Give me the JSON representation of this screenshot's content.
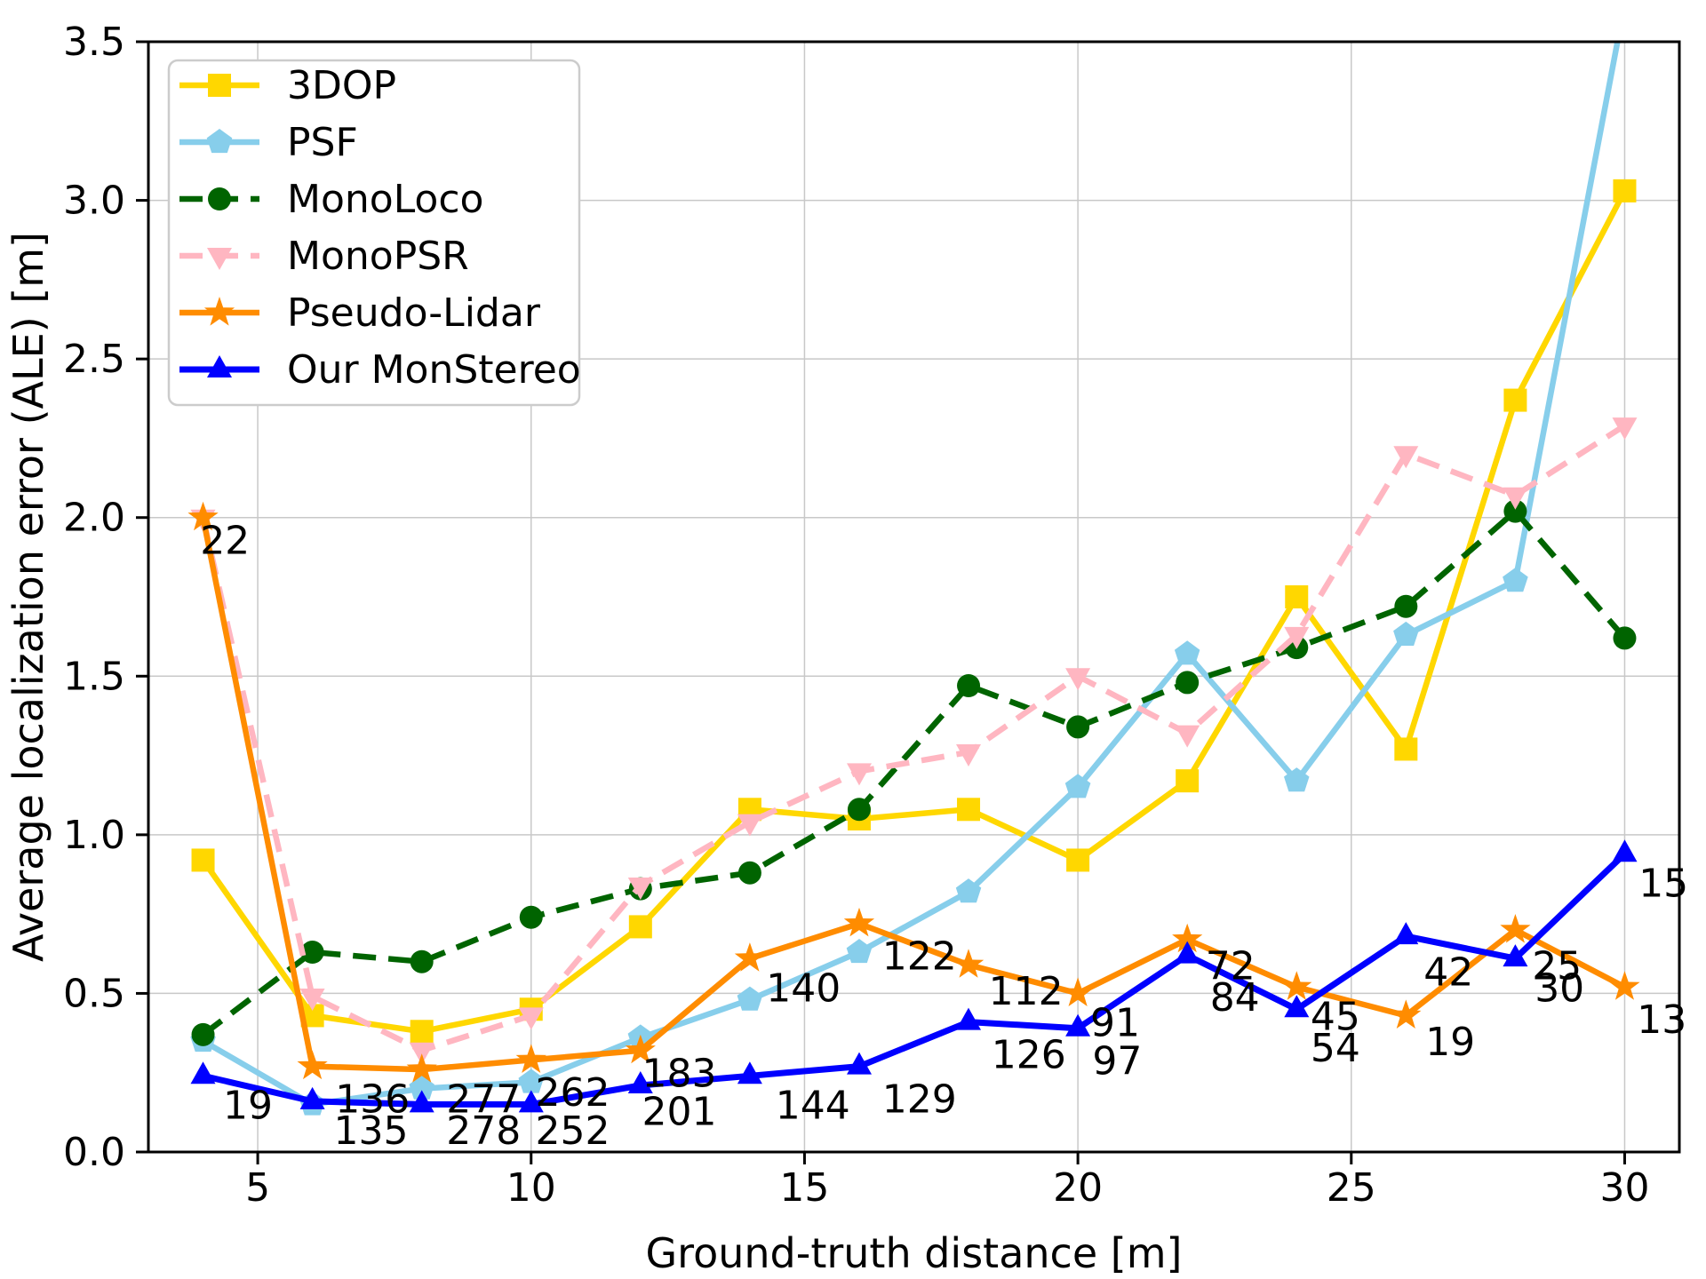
{
  "figure": {
    "background": "#ffffff",
    "grid_color": "#c8c8c8",
    "spine_color": "#000000",
    "legend_border_color": "#cccccc"
  },
  "chart_data": {
    "type": "line",
    "title": "",
    "xlabel": "Ground-truth distance [m]",
    "ylabel": "Average localization error (ALE) [m]",
    "xlim": [
      3,
      31
    ],
    "ylim": [
      0,
      3.5
    ],
    "grid": true,
    "legend_position": "upper-left",
    "xticks": [
      "5",
      "10",
      "15",
      "20",
      "25",
      "30"
    ],
    "yticks": [
      "0.0",
      "0.5",
      "1.0",
      "1.5",
      "2.0",
      "2.5",
      "3.0",
      "3.5"
    ],
    "x": [
      4,
      6,
      8,
      10,
      12,
      14,
      16,
      18,
      20,
      22,
      24,
      26,
      28,
      30
    ],
    "series": [
      {
        "name": "3DOP",
        "color": "#FFD700",
        "marker": "square",
        "dash": "solid",
        "values": [
          0.92,
          0.43,
          0.38,
          0.45,
          0.71,
          1.08,
          1.05,
          1.08,
          0.92,
          1.17,
          1.75,
          1.27,
          2.37,
          3.03
        ]
      },
      {
        "name": "PSF",
        "color": "#87CEEB",
        "marker": "pentagon",
        "dash": "solid",
        "values": [
          0.35,
          0.15,
          0.2,
          0.22,
          0.36,
          0.48,
          0.63,
          0.82,
          1.15,
          1.57,
          1.17,
          1.63,
          1.8,
          3.62
        ]
      },
      {
        "name": "MonoLoco",
        "color": "#006400",
        "marker": "circle",
        "dash": "dashed",
        "values": [
          0.37,
          0.63,
          0.6,
          0.74,
          0.83,
          0.88,
          1.08,
          1.47,
          1.34,
          1.48,
          1.59,
          1.72,
          2.02,
          1.62
        ]
      },
      {
        "name": "MonoPSR",
        "color": "#FFB6C1",
        "marker": "triangle-down",
        "dash": "dashed",
        "values": [
          2.0,
          0.49,
          0.32,
          0.43,
          0.84,
          1.04,
          1.2,
          1.26,
          1.5,
          1.32,
          1.63,
          2.2,
          2.07,
          2.29
        ]
      },
      {
        "name": "Pseudo-Lidar",
        "color": "#FF8C00",
        "marker": "star",
        "dash": "solid",
        "values": [
          2.0,
          0.27,
          0.26,
          0.29,
          0.32,
          0.61,
          0.72,
          0.59,
          0.5,
          0.67,
          0.52,
          0.43,
          0.7,
          0.52
        ]
      },
      {
        "name": "Our MonStereo",
        "color": "#0000FF",
        "marker": "triangle-up",
        "dash": "solid",
        "values": [
          0.24,
          0.16,
          0.15,
          0.15,
          0.21,
          0.24,
          0.27,
          0.41,
          0.39,
          0.62,
          0.45,
          0.68,
          0.61,
          0.94
        ]
      }
    ],
    "annotations": [
      {
        "text": "22",
        "x": 4.4,
        "y": 1.93,
        "series": "Pseudo-Lidar"
      },
      {
        "text": "19",
        "x": 4.82,
        "y": 0.15,
        "series": "Our MonStereo"
      },
      {
        "text": "136",
        "x": 7.1,
        "y": 0.17,
        "series": "Pseudo-Lidar"
      },
      {
        "text": "135",
        "x": 7.07,
        "y": 0.07,
        "series": "Our MonStereo"
      },
      {
        "text": "277",
        "x": 9.13,
        "y": 0.17,
        "series": "Pseudo-Lidar"
      },
      {
        "text": "278",
        "x": 9.13,
        "y": 0.07,
        "series": "Our MonStereo"
      },
      {
        "text": "262",
        "x": 10.76,
        "y": 0.19,
        "series": "Pseudo-Lidar"
      },
      {
        "text": "252",
        "x": 10.76,
        "y": 0.07,
        "series": "Our MonStereo"
      },
      {
        "text": "183",
        "x": 12.71,
        "y": 0.25,
        "series": "Pseudo-Lidar"
      },
      {
        "text": "201",
        "x": 12.71,
        "y": 0.13,
        "series": "Our MonStereo"
      },
      {
        "text": "140",
        "x": 14.98,
        "y": 0.52,
        "series": "Pseudo-Lidar"
      },
      {
        "text": "144",
        "x": 15.15,
        "y": 0.15,
        "series": "Our MonStereo"
      },
      {
        "text": "122",
        "x": 17.1,
        "y": 0.62,
        "series": "Pseudo-Lidar"
      },
      {
        "text": "129",
        "x": 17.1,
        "y": 0.17,
        "series": "Our MonStereo"
      },
      {
        "text": "112",
        "x": 19.05,
        "y": 0.51,
        "series": "Pseudo-Lidar"
      },
      {
        "text": "126",
        "x": 19.1,
        "y": 0.31,
        "series": "Our MonStereo"
      },
      {
        "text": "91",
        "x": 20.68,
        "y": 0.41,
        "series": "Pseudo-Lidar"
      },
      {
        "text": "97",
        "x": 20.72,
        "y": 0.29,
        "series": "Our MonStereo"
      },
      {
        "text": "72",
        "x": 22.79,
        "y": 0.59,
        "series": "Pseudo-Lidar"
      },
      {
        "text": "84",
        "x": 22.87,
        "y": 0.49,
        "series": "Our MonStereo"
      },
      {
        "text": "45",
        "x": 24.71,
        "y": 0.43,
        "series": "Pseudo-Lidar"
      },
      {
        "text": "54",
        "x": 24.71,
        "y": 0.33,
        "series": "Our MonStereo"
      },
      {
        "text": "42",
        "x": 26.78,
        "y": 0.57,
        "series": "Our MonStereo"
      },
      {
        "text": "19",
        "x": 26.81,
        "y": 0.35,
        "series": "Pseudo-Lidar"
      },
      {
        "text": "25",
        "x": 28.76,
        "y": 0.59,
        "series": "Pseudo-Lidar"
      },
      {
        "text": "30",
        "x": 28.81,
        "y": 0.52,
        "series": "Our MonStereo"
      },
      {
        "text": "15",
        "x": 30.71,
        "y": 0.85,
        "series": "Our MonStereo"
      },
      {
        "text": "13",
        "x": 30.68,
        "y": 0.42,
        "series": "Pseudo-Lidar"
      }
    ]
  }
}
